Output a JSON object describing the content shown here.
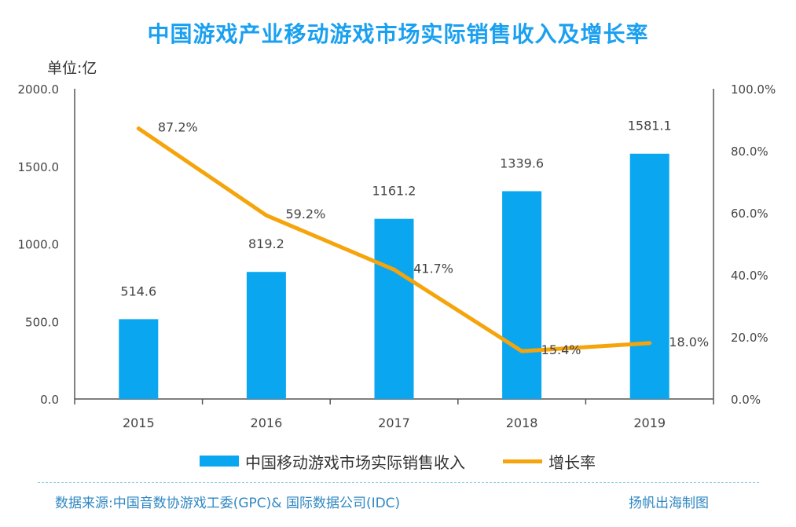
{
  "title": "中国游戏产业移动游戏市场实际销售收入及增长率",
  "unit_label": "单位:亿",
  "colors": {
    "bar": "#0aa7f0",
    "line": "#f5a40c",
    "title": "#1aa0f0",
    "footer": "#2f87c2"
  },
  "legend": {
    "bar_label": "中国移动游戏市场实际销售收入",
    "line_label": "增长率"
  },
  "footer": {
    "source": "数据来源:中国音数协游戏工委(GPC)& 国际数据公司(IDC)",
    "credit": "扬帆出海制图"
  },
  "chart_data": {
    "type": "bar",
    "categories": [
      "2015",
      "2016",
      "2017",
      "2018",
      "2019"
    ],
    "series": [
      {
        "name": "中国移动游戏市场实际销售收入",
        "type": "bar",
        "axis": "left",
        "values": [
          514.6,
          819.2,
          1161.2,
          1339.6,
          1581.1
        ],
        "labels": [
          "514.6",
          "819.2",
          "1161.2",
          "1339.6",
          "1581.1"
        ]
      },
      {
        "name": "增长率",
        "type": "line",
        "axis": "right",
        "values": [
          87.2,
          59.2,
          41.7,
          15.4,
          18.0
        ],
        "labels": [
          "87.2%",
          "59.2%",
          "41.7%",
          "15.4%",
          "18.0%"
        ]
      }
    ],
    "y_left": {
      "ticks": [
        "0.0",
        "500.0",
        "1000.0",
        "1500.0",
        "2000.0"
      ],
      "range": [
        0,
        2000
      ]
    },
    "y_right": {
      "ticks": [
        "0.0%",
        "20.0%",
        "40.0%",
        "60.0%",
        "80.0%",
        "100.0%"
      ],
      "range": [
        0,
        100
      ]
    },
    "grid": false,
    "legend_position": "bottom"
  }
}
